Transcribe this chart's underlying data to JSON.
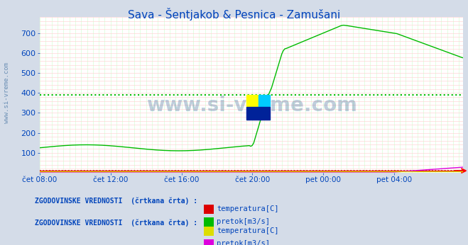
{
  "title": "Sava - Šentjakob & Pesnica - Zamušani",
  "bg_color": "#d4dce8",
  "plot_bg_color": "#ffffff",
  "grid_color_h": "#ffcccc",
  "grid_color_v": "#ccffcc",
  "title_color": "#0044bb",
  "axis_label_color": "#0044bb",
  "watermark_text": "www.si-vreme.com",
  "watermark_color": "#1a5588",
  "watermark_alpha": 0.28,
  "ylim": [
    0,
    780
  ],
  "yticks": [
    100,
    200,
    300,
    400,
    500,
    600,
    700
  ],
  "xtick_labels": [
    "čet 08:00",
    "čet 12:00",
    "čet 16:00",
    "čet 20:00",
    "pet 00:00",
    "pet 04:00"
  ],
  "xtick_positions": [
    0,
    48,
    96,
    144,
    192,
    240
  ],
  "total_points": 288,
  "legend1_title": "ZGODOVINSKE VREDNOSTI  (črtkana črta) :",
  "legend1_items": [
    {
      "label": "temperatura[C]",
      "color": "#dd0000"
    },
    {
      "label": "pretok[m3/s]",
      "color": "#00bb00"
    }
  ],
  "legend2_title": "ZGODOVINSKE VREDNOSTI  (črtkana črta) :",
  "legend2_items": [
    {
      "label": "temperatura[C]",
      "color": "#dddd00"
    },
    {
      "label": "pretok[m3/s]",
      "color": "#dd00dd"
    }
  ],
  "sava_pretok_color": "#00bb00",
  "sava_pretok_hist_color": "#00bb00",
  "sava_pretok_hist_value": 390,
  "sava_temp_color": "#dd0000",
  "sava_temp_hist_value": 10,
  "pesnica_pretok_color": "#dd00dd",
  "pesnica_temp_color": "#dddd00",
  "pesnica_pretok_hist_value": 10,
  "pesnica_temp_hist_value": 10
}
